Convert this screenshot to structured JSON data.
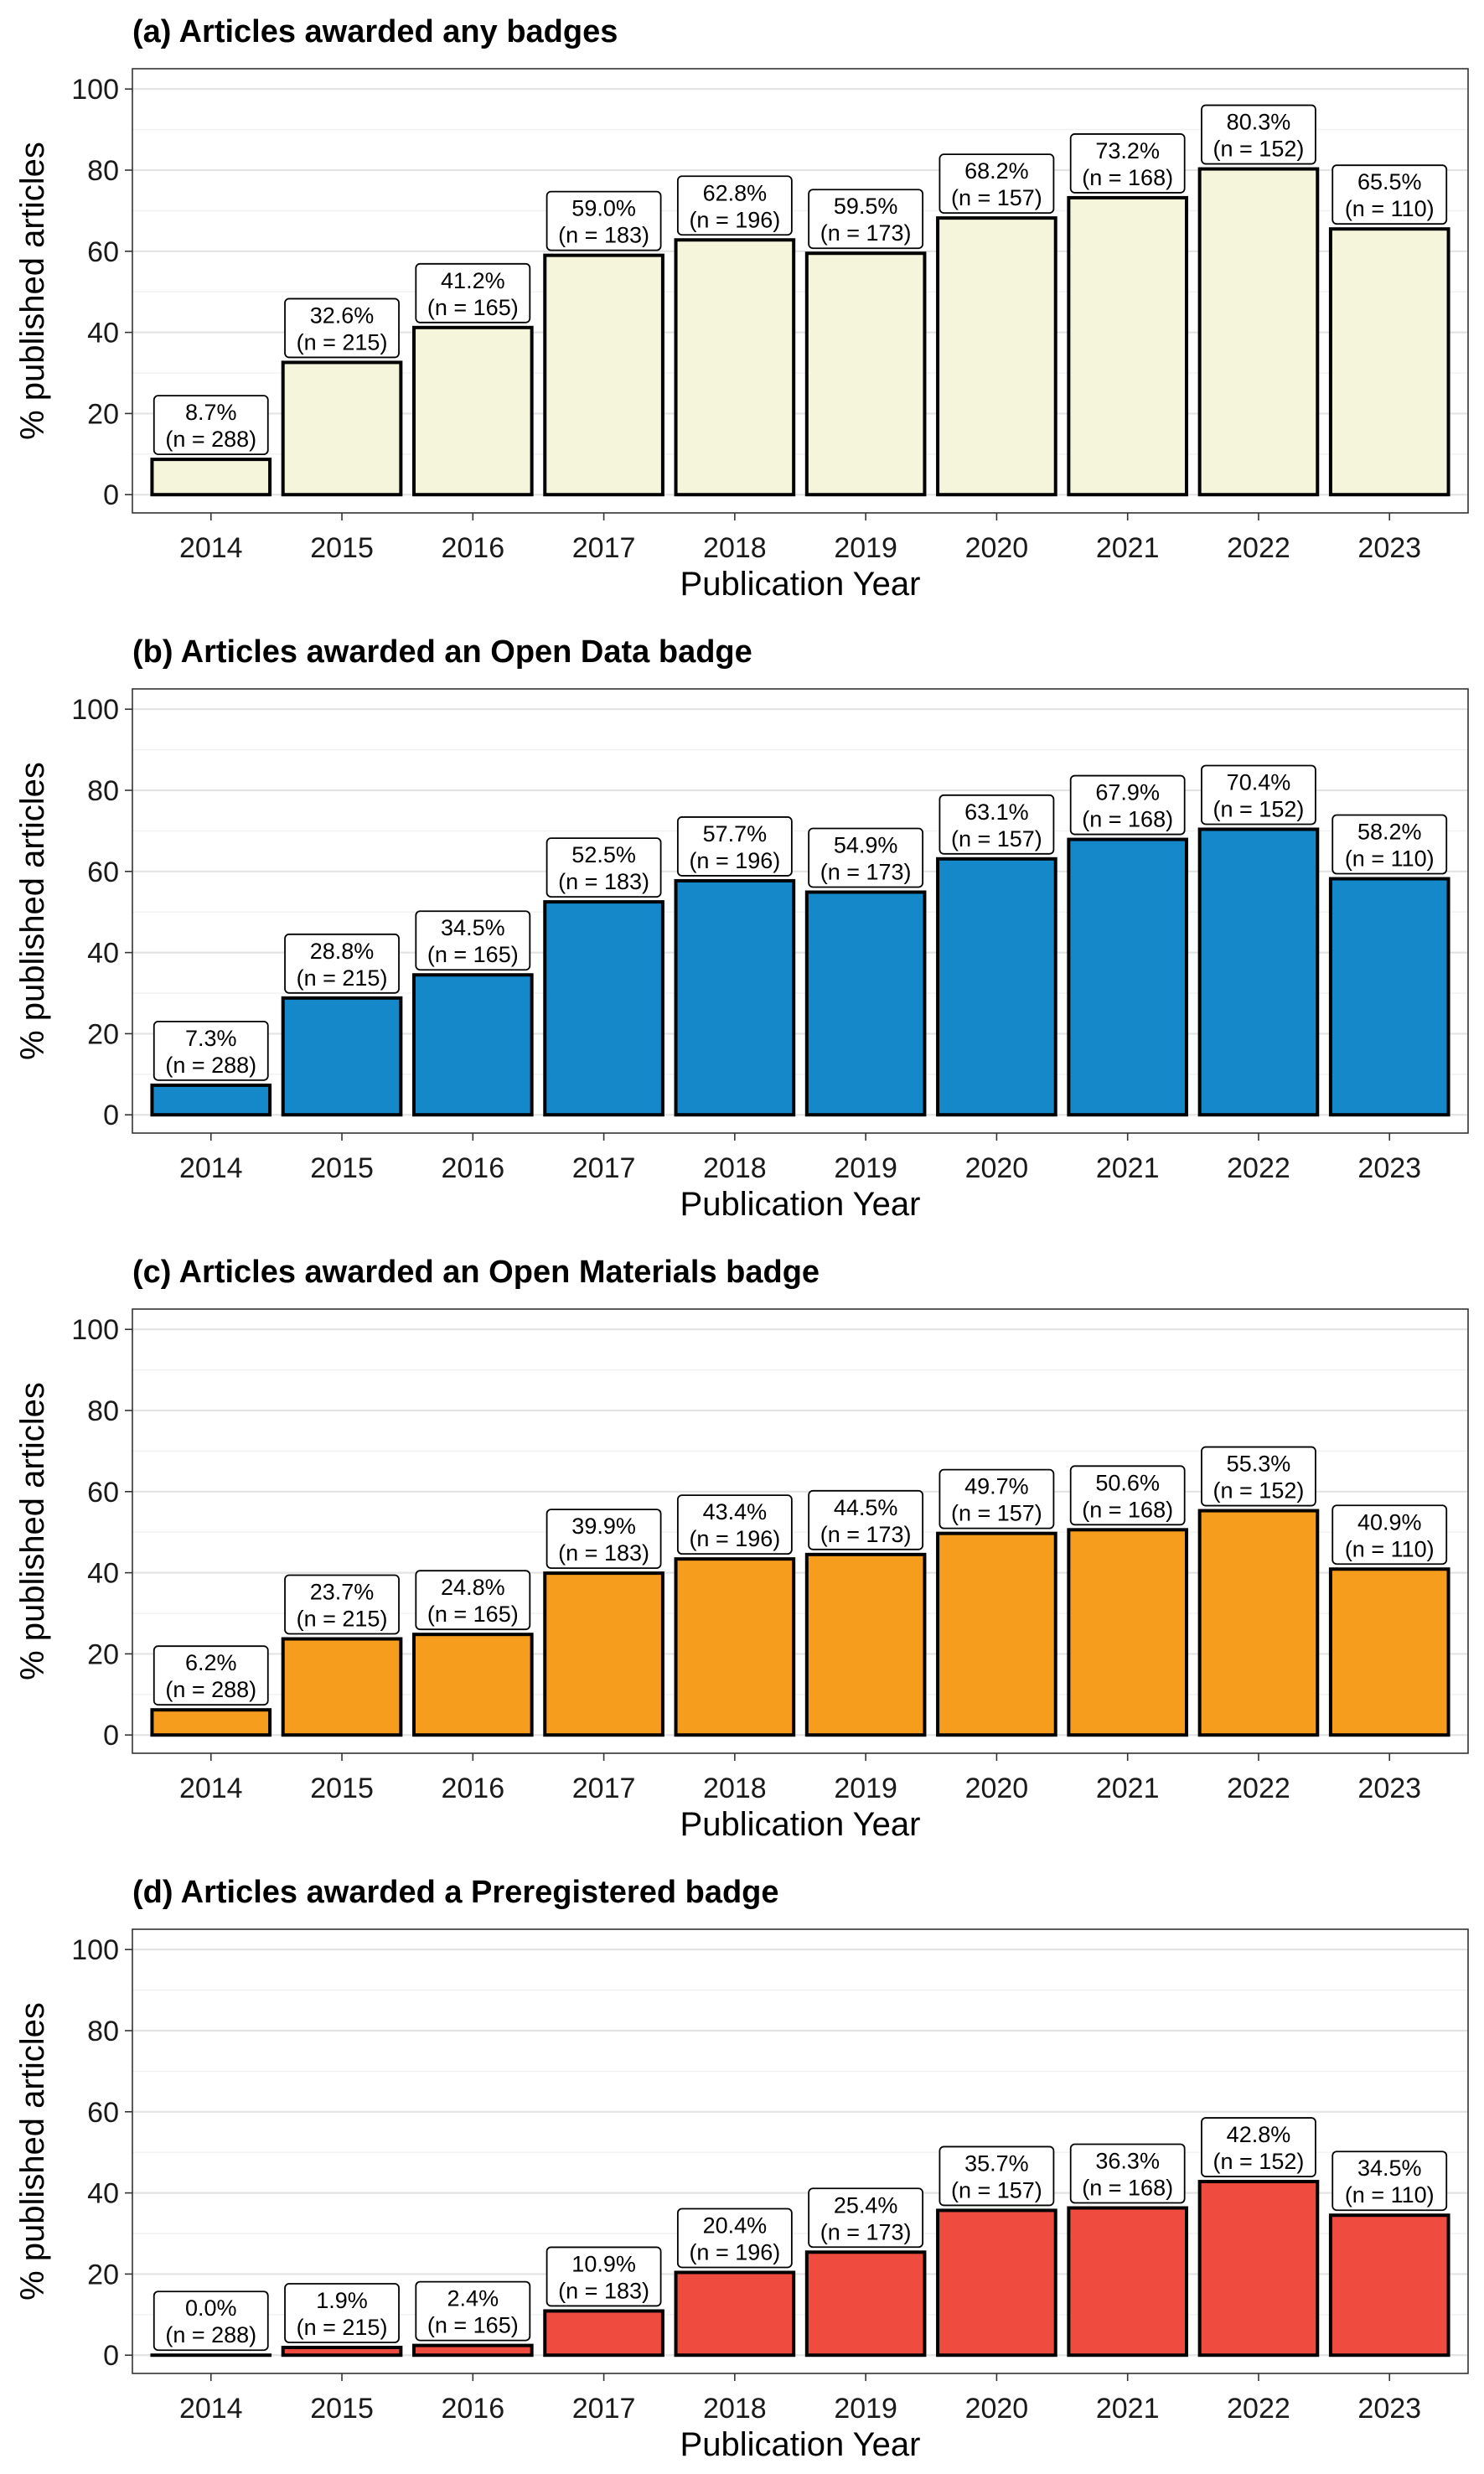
{
  "chart_data": [
    {
      "type": "bar",
      "title": "(a) Articles awarded any badges",
      "xlabel": "Publication Year",
      "ylabel": "% published articles",
      "ylim": [
        0,
        100
      ],
      "yticks": [
        0,
        20,
        40,
        60,
        80,
        100
      ],
      "grid": true,
      "categories": [
        "2014",
        "2015",
        "2016",
        "2017",
        "2018",
        "2019",
        "2020",
        "2021",
        "2022",
        "2023"
      ],
      "values": [
        8.7,
        32.6,
        41.2,
        59.0,
        62.8,
        59.5,
        68.2,
        73.2,
        80.3,
        65.5
      ],
      "labels": [
        "8.7%",
        "32.6%",
        "41.2%",
        "59.0%",
        "62.8%",
        "59.5%",
        "68.2%",
        "73.2%",
        "80.3%",
        "65.5%"
      ],
      "n_labels": [
        "(n = 288)",
        "(n = 215)",
        "(n = 165)",
        "(n = 183)",
        "(n = 196)",
        "(n = 173)",
        "(n = 157)",
        "(n = 168)",
        "(n = 152)",
        "(n = 110)"
      ],
      "color": "#F5F5DC"
    },
    {
      "type": "bar",
      "title": "(b) Articles awarded an Open Data badge",
      "xlabel": "Publication Year",
      "ylabel": "% published articles",
      "ylim": [
        0,
        100
      ],
      "yticks": [
        0,
        20,
        40,
        60,
        80,
        100
      ],
      "grid": true,
      "categories": [
        "2014",
        "2015",
        "2016",
        "2017",
        "2018",
        "2019",
        "2020",
        "2021",
        "2022",
        "2023"
      ],
      "values": [
        7.3,
        28.8,
        34.5,
        52.5,
        57.7,
        54.9,
        63.1,
        67.9,
        70.4,
        58.2
      ],
      "labels": [
        "7.3%",
        "28.8%",
        "34.5%",
        "52.5%",
        "57.7%",
        "54.9%",
        "63.1%",
        "67.9%",
        "70.4%",
        "58.2%"
      ],
      "n_labels": [
        "(n = 288)",
        "(n = 215)",
        "(n = 165)",
        "(n = 183)",
        "(n = 196)",
        "(n = 173)",
        "(n = 157)",
        "(n = 168)",
        "(n = 152)",
        "(n = 110)"
      ],
      "color": "#1588C9"
    },
    {
      "type": "bar",
      "title": "(c) Articles awarded an Open Materials badge",
      "xlabel": "Publication Year",
      "ylabel": "% published articles",
      "ylim": [
        0,
        100
      ],
      "yticks": [
        0,
        20,
        40,
        60,
        80,
        100
      ],
      "grid": true,
      "categories": [
        "2014",
        "2015",
        "2016",
        "2017",
        "2018",
        "2019",
        "2020",
        "2021",
        "2022",
        "2023"
      ],
      "values": [
        6.2,
        23.7,
        24.8,
        39.9,
        43.4,
        44.5,
        49.7,
        50.6,
        55.3,
        40.9
      ],
      "labels": [
        "6.2%",
        "23.7%",
        "24.8%",
        "39.9%",
        "43.4%",
        "44.5%",
        "49.7%",
        "50.6%",
        "55.3%",
        "40.9%"
      ],
      "n_labels": [
        "(n = 288)",
        "(n = 215)",
        "(n = 165)",
        "(n = 183)",
        "(n = 196)",
        "(n = 173)",
        "(n = 157)",
        "(n = 168)",
        "(n = 152)",
        "(n = 110)"
      ],
      "color": "#F79D1E"
    },
    {
      "type": "bar",
      "title": "(d) Articles awarded a Preregistered badge",
      "xlabel": "Publication Year",
      "ylabel": "% published articles",
      "ylim": [
        0,
        100
      ],
      "yticks": [
        0,
        20,
        40,
        60,
        80,
        100
      ],
      "grid": true,
      "categories": [
        "2014",
        "2015",
        "2016",
        "2017",
        "2018",
        "2019",
        "2020",
        "2021",
        "2022",
        "2023"
      ],
      "values": [
        0.0,
        1.9,
        2.4,
        10.9,
        20.4,
        25.4,
        35.7,
        36.3,
        42.8,
        34.5
      ],
      "labels": [
        "0.0%",
        "1.9%",
        "2.4%",
        "10.9%",
        "20.4%",
        "25.4%",
        "35.7%",
        "36.3%",
        "42.8%",
        "34.5%"
      ],
      "n_labels": [
        "(n = 288)",
        "(n = 215)",
        "(n = 165)",
        "(n = 183)",
        "(n = 196)",
        "(n = 173)",
        "(n = 157)",
        "(n = 168)",
        "(n = 152)",
        "(n = 110)"
      ],
      "color": "#EF4B3F"
    }
  ]
}
